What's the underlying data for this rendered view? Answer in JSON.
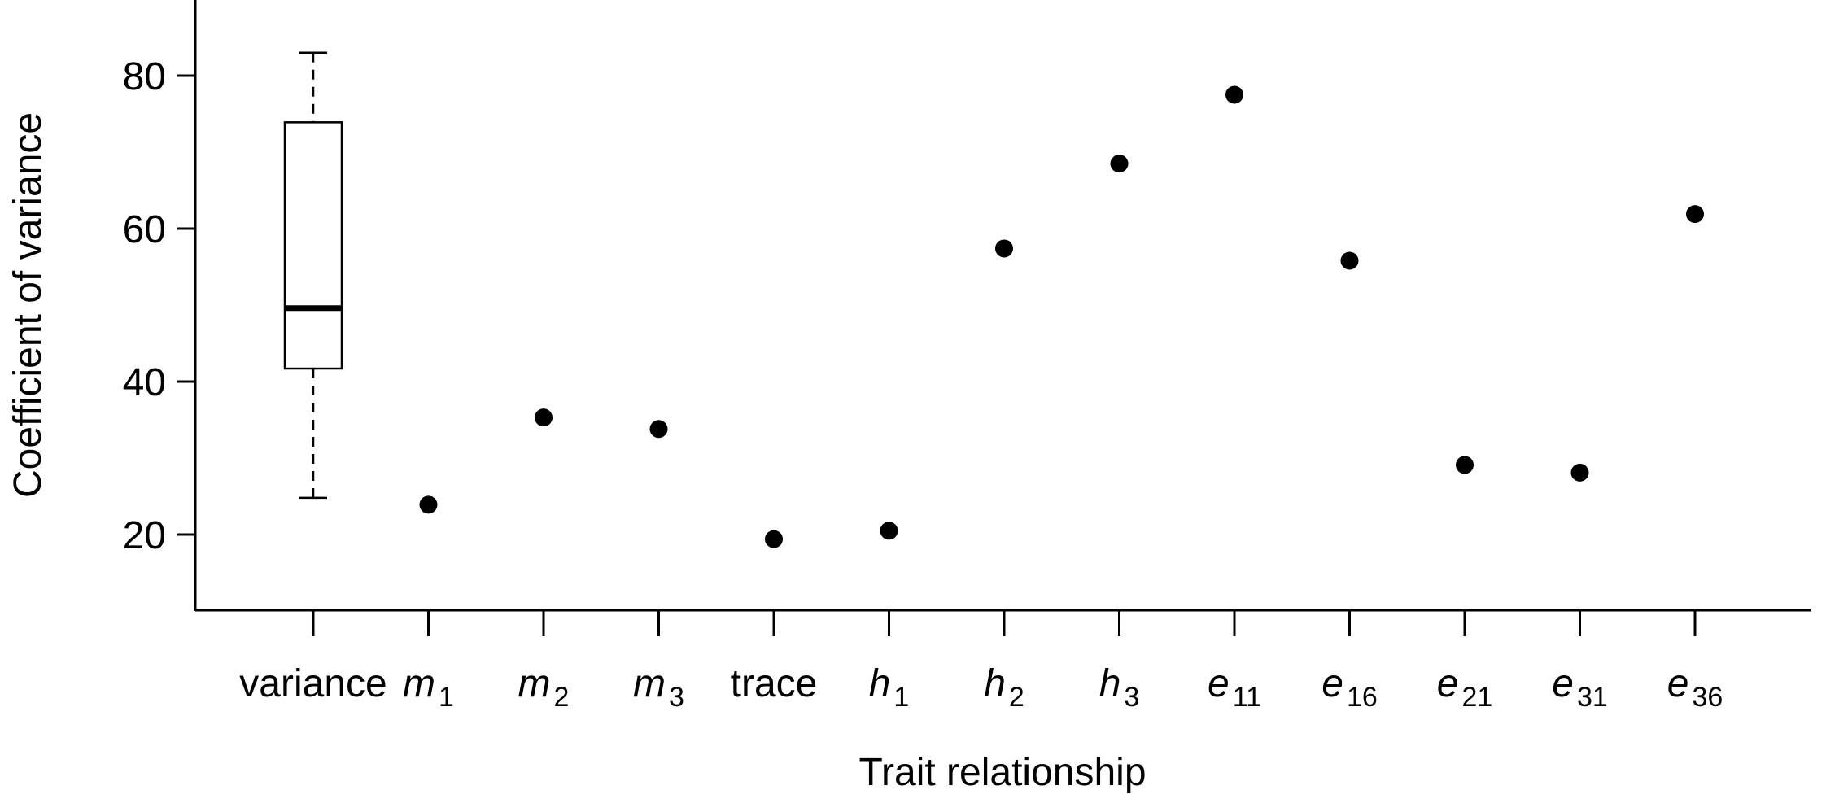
{
  "chart_data": {
    "type": "scatter",
    "title": "",
    "xlabel": "Trait relationship",
    "ylabel": "Coefficient of variance",
    "ylim": [
      10,
      90
    ],
    "yticks": [
      20,
      40,
      60,
      80
    ],
    "grid": false,
    "categories": [
      {
        "label": "variance",
        "base": "variance",
        "sub": "",
        "italic": false
      },
      {
        "label": "m1",
        "base": "m",
        "sub": "1",
        "italic": true
      },
      {
        "label": "m2",
        "base": "m",
        "sub": "2",
        "italic": true
      },
      {
        "label": "m3",
        "base": "m",
        "sub": "3",
        "italic": true
      },
      {
        "label": "trace",
        "base": "trace",
        "sub": "",
        "italic": false
      },
      {
        "label": "h1",
        "base": "h",
        "sub": "1",
        "italic": true
      },
      {
        "label": "h2",
        "base": "h",
        "sub": "2",
        "italic": true
      },
      {
        "label": "h3",
        "base": "h",
        "sub": "3",
        "italic": true
      },
      {
        "label": "e11",
        "base": "e",
        "sub": "11",
        "italic": true
      },
      {
        "label": "e16",
        "base": "e",
        "sub": "16",
        "italic": true
      },
      {
        "label": "e21",
        "base": "e",
        "sub": "21",
        "italic": true
      },
      {
        "label": "e31",
        "base": "e",
        "sub": "31",
        "italic": true
      },
      {
        "label": "e36",
        "base": "e",
        "sub": "36",
        "italic": true
      }
    ],
    "boxplot": {
      "category": "variance",
      "min": 24.8,
      "q1": 41.7,
      "median": 49.6,
      "q3": 73.9,
      "max": 83.0
    },
    "points": [
      {
        "category": "m1",
        "value": 23.9
      },
      {
        "category": "m2",
        "value": 35.3
      },
      {
        "category": "m3",
        "value": 33.8
      },
      {
        "category": "trace",
        "value": 19.4
      },
      {
        "category": "h1",
        "value": 20.5
      },
      {
        "category": "h2",
        "value": 57.4
      },
      {
        "category": "h3",
        "value": 68.5
      },
      {
        "category": "e11",
        "value": 77.5
      },
      {
        "category": "e16",
        "value": 55.8
      },
      {
        "category": "e21",
        "value": 29.1
      },
      {
        "category": "e31",
        "value": 28.1
      },
      {
        "category": "e36",
        "value": 61.9
      }
    ],
    "colors": {
      "points": "#000000",
      "axis": "#000000",
      "box_fill": "#ffffff"
    }
  }
}
